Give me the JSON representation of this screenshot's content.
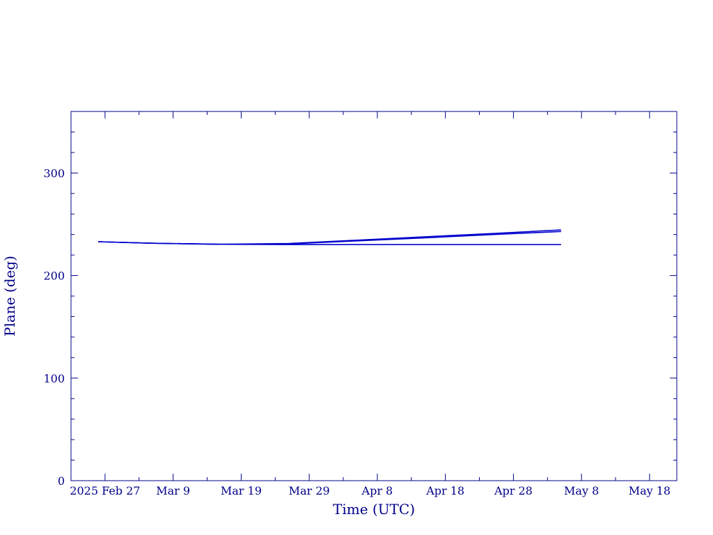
{
  "chart_data": {
    "type": "line",
    "xlabel": "Time (UTC)",
    "ylabel": "Plane (deg)",
    "xlim": [
      "2025-02-22",
      "2025-05-22"
    ],
    "ylim": [
      0,
      360
    ],
    "x_ticks": [
      {
        "date": "2025-02-27",
        "label": "2025 Feb 27"
      },
      {
        "date": "2025-03-09",
        "label": "Mar  9"
      },
      {
        "date": "2025-03-19",
        "label": "Mar 19"
      },
      {
        "date": "2025-03-29",
        "label": "Mar 29"
      },
      {
        "date": "2025-04-08",
        "label": "Apr  8"
      },
      {
        "date": "2025-04-18",
        "label": "Apr 18"
      },
      {
        "date": "2025-04-28",
        "label": "Apr 28"
      },
      {
        "date": "2025-05-08",
        "label": "May  8"
      },
      {
        "date": "2025-05-18",
        "label": "May 18"
      }
    ],
    "y_ticks": [
      {
        "value": 0,
        "label": "0"
      },
      {
        "value": 100,
        "label": "100"
      },
      {
        "value": 200,
        "label": "200"
      },
      {
        "value": 300,
        "label": "300"
      }
    ],
    "grid": false,
    "colors": {
      "axis": "#00008b",
      "line": "#0000cd"
    },
    "series": [
      {
        "x": [
          "2025-02-26",
          "2025-03-06",
          "2025-03-16",
          "2025-03-26",
          "2025-04-05",
          "2025-04-15",
          "2025-04-25",
          "2025-05-05"
        ],
        "values": [
          233.0,
          231.5,
          230.5,
          231.2,
          234.5,
          237.8,
          241.0,
          244.5
        ]
      },
      {
        "x": [
          "2025-02-26",
          "2025-03-06",
          "2025-03-16",
          "2025-03-26",
          "2025-04-05",
          "2025-04-15",
          "2025-04-25",
          "2025-05-05"
        ],
        "values": [
          233.0,
          231.5,
          230.5,
          230.8,
          233.8,
          236.8,
          240.0,
          243.0
        ]
      },
      {
        "x": [
          "2025-02-26",
          "2025-03-06",
          "2025-03-16",
          "2025-03-26",
          "2025-04-05",
          "2025-04-15",
          "2025-04-25",
          "2025-05-05"
        ],
        "values": [
          233.0,
          231.5,
          230.5,
          230.2,
          230.2,
          230.2,
          230.2,
          230.2
        ]
      }
    ]
  }
}
